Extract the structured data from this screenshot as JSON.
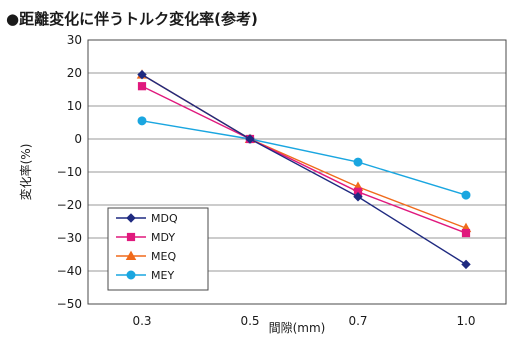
{
  "chart_data": {
    "type": "line",
    "title": "●距離変化に伴うトルク変化率(参考)",
    "xlabel": "間隙(mm)",
    "ylabel": "変化率(%)",
    "x": [
      0.3,
      0.5,
      0.7,
      1.0
    ],
    "x_tick_labels": [
      "0.3",
      "0.5",
      "0.7",
      "1.0"
    ],
    "ylim": [
      -50,
      30
    ],
    "y_ticks": [
      30,
      20,
      10,
      0,
      -10,
      -20,
      -30,
      -40,
      -50
    ],
    "y_tick_labels": [
      "30",
      "20",
      "10",
      "0",
      "−10",
      "−20",
      "−30",
      "−40",
      "−50"
    ],
    "grid": "horizontal",
    "legend_position": "bottom-left",
    "series": [
      {
        "name": "MDQ",
        "values": [
          19.5,
          0,
          -17.5,
          -38
        ],
        "color": "#1f2a80",
        "marker": "diamond"
      },
      {
        "name": "MDY",
        "values": [
          16,
          0,
          -16,
          -28.5
        ],
        "color": "#e0197d",
        "marker": "square"
      },
      {
        "name": "MEQ",
        "values": [
          19.5,
          0,
          -14.5,
          -27
        ],
        "color": "#f06a1b",
        "marker": "triangle"
      },
      {
        "name": "MEY",
        "values": [
          5.5,
          0,
          -7,
          -17
        ],
        "color": "#1aa6e0",
        "marker": "circle"
      }
    ]
  }
}
